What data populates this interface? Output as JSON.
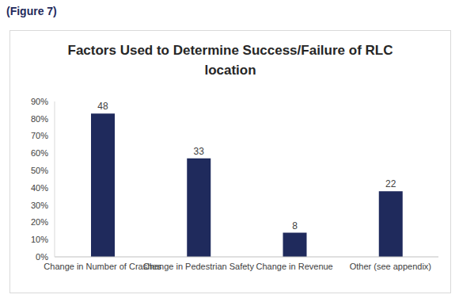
{
  "figure_label": "(Figure 7)",
  "chart_data": {
    "type": "bar",
    "title": "Factors Used to Determine Success/Failure of RLC location",
    "categories": [
      "Change in Number of Crashes",
      "Change in Pedestrian Safety",
      "Change in Revenue",
      "Other (see appendix)"
    ],
    "values": [
      83,
      57,
      14,
      38
    ],
    "counts": [
      48,
      33,
      8,
      22
    ],
    "color": "#1f2a5c",
    "ylim": [
      0,
      90
    ],
    "yticks": [
      {
        "value": 0,
        "label": "0%"
      },
      {
        "value": 10,
        "label": "10%"
      },
      {
        "value": 20,
        "label": "20%"
      },
      {
        "value": 30,
        "label": "30%"
      },
      {
        "value": 40,
        "label": "40%"
      },
      {
        "value": 50,
        "label": "50%"
      },
      {
        "value": 60,
        "label": "60%"
      },
      {
        "value": 70,
        "label": "70%"
      },
      {
        "value": 80,
        "label": "80%"
      },
      {
        "value": 90,
        "label": "90%"
      }
    ],
    "grid": false
  }
}
